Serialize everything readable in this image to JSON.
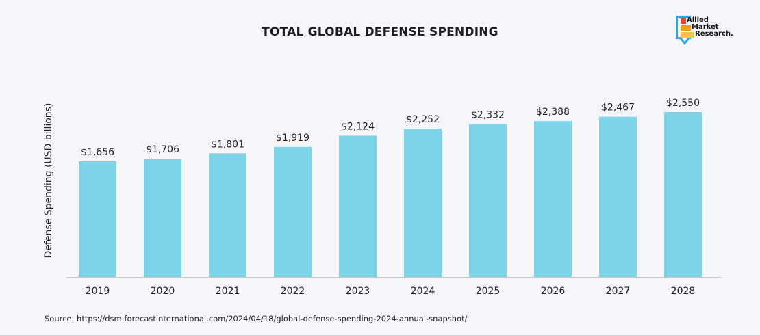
{
  "brand": {
    "logo_lines": [
      "Allied",
      "Market",
      "Research."
    ],
    "colors": {
      "frame": "#29a8e0",
      "red": "#e8472a",
      "orange": "#f39a23",
      "yellow": "#f7c83c"
    }
  },
  "source": "Source: https://dsm.forecastinternational.com/2024/04/18/global-defense-spending-2024-annual-snapshot/",
  "chart_data": {
    "type": "bar",
    "title": "TOTAL GLOBAL DEFENSE SPENDING",
    "xlabel": "",
    "ylabel": "Defense Spending (USD billions)",
    "categories": [
      "2019",
      "2020",
      "2021",
      "2022",
      "2023",
      "2024",
      "2025",
      "2026",
      "2027",
      "2028"
    ],
    "values": [
      1656,
      1706,
      1801,
      1919,
      2124,
      2252,
      2332,
      2388,
      2467,
      2550
    ],
    "value_labels": [
      "$1,656",
      "$1,706",
      "$1,801",
      "$1,919",
      "$2,124",
      "$2,252",
      "$2,332",
      "$2,388",
      "$2,467",
      "$2,550"
    ],
    "bar_color": "#7dd3e8",
    "grid": false,
    "legend": "none"
  }
}
